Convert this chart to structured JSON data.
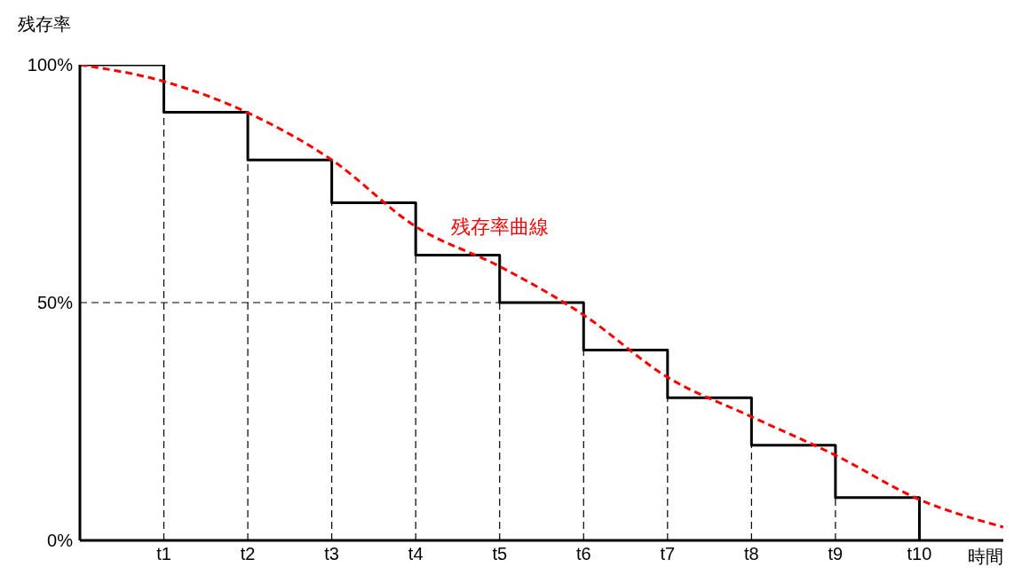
{
  "chart_data": {
    "type": "step",
    "ylabel": "残存率",
    "xlabel": "時間",
    "categories": [
      null,
      "t1",
      "t2",
      "t3",
      "t4",
      "t5",
      "t6",
      "t7",
      "t8",
      "t9",
      "t10",
      null
    ],
    "ylim": [
      0,
      100
    ],
    "yticks": [
      {
        "value": 0,
        "label": "0%"
      },
      {
        "value": 50,
        "label": "50%"
      },
      {
        "value": 100,
        "label": "100%"
      }
    ],
    "marker": "none",
    "grid": false,
    "legend": false,
    "series": [
      {
        "color": "#000000",
        "line_style": "solid",
        "values": [
          100,
          90,
          80,
          71,
          60,
          50,
          40,
          30,
          20,
          9,
          0,
          null
        ]
      },
      {
        "type": "line",
        "name": "残存率曲線",
        "color": "#ff0000",
        "line_style": "dashed",
        "values": [
          100,
          96.5,
          89.9,
          80,
          66,
          57.6,
          47.4,
          34.3,
          26,
          17.9,
          8.6,
          2.8
        ]
      }
    ],
    "ref_lines": [
      {
        "axis": "x",
        "value": "t1",
        "color": "#000000",
        "line_style": "dashed"
      },
      {
        "axis": "x",
        "value": "t2",
        "color": "#000000",
        "line_style": "dashed"
      },
      {
        "axis": "x",
        "value": "t3",
        "color": "#000000",
        "line_style": "dashed"
      },
      {
        "axis": "x",
        "value": "t4",
        "color": "#000000",
        "line_style": "dashed"
      },
      {
        "axis": "x",
        "value": "t5",
        "color": "#000000",
        "line_style": "dashed"
      },
      {
        "axis": "x",
        "value": "t6",
        "color": "#000000",
        "line_style": "dashed"
      },
      {
        "axis": "x",
        "value": "t7",
        "color": "#000000",
        "line_style": "dashed"
      },
      {
        "axis": "x",
        "value": "t8",
        "color": "#000000",
        "line_style": "dashed"
      },
      {
        "axis": "x",
        "value": "t9",
        "color": "#000000",
        "line_style": "dashed"
      },
      {
        "axis": "y",
        "value": 50,
        "color": "#000000",
        "line_style": "dashed"
      }
    ]
  }
}
